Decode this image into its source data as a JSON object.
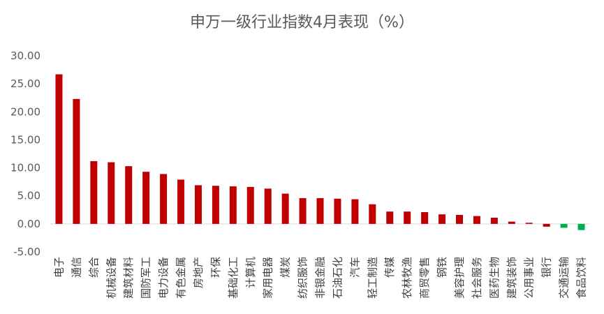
{
  "chart_data": {
    "type": "bar",
    "title": "申万一级行业指数4月表现（%）",
    "xlabel": "",
    "ylabel": "",
    "ylim": [
      -5,
      30
    ],
    "yticks": [
      "30.00",
      "25.00",
      "20.00",
      "15.00",
      "10.00",
      "5.00",
      "0.00",
      "-5.00"
    ],
    "grid": false,
    "legend": "none",
    "categories": [
      "电子",
      "通信",
      "综合",
      "机械设备",
      "建筑材料",
      "国防军工",
      "电力设备",
      "有色金属",
      "房地产",
      "环保",
      "基础化工",
      "计算机",
      "家用电器",
      "煤炭",
      "纺织服饰",
      "非银金融",
      "石油石化",
      "汽车",
      "轻工制造",
      "传媒",
      "农林牧渔",
      "商贸零售",
      "钢铁",
      "美容护理",
      "社会服务",
      "医药生物",
      "建筑装饰",
      "公用事业",
      "银行",
      "交通运输",
      "食品饮料"
    ],
    "values": [
      26.7,
      22.3,
      11.2,
      11.0,
      10.3,
      9.3,
      8.9,
      7.9,
      6.9,
      6.8,
      6.7,
      6.6,
      6.3,
      5.4,
      4.6,
      4.6,
      4.5,
      4.4,
      3.5,
      2.2,
      2.2,
      2.1,
      1.7,
      1.6,
      1.4,
      1.1,
      0.4,
      0.2,
      -0.5,
      -0.7,
      -1.1
    ],
    "colors": {
      "positive": "#C00000",
      "negative_red": "#C00000",
      "negative_green": "#00B050"
    },
    "green_categories": [
      "交通运输",
      "食品饮料"
    ]
  }
}
